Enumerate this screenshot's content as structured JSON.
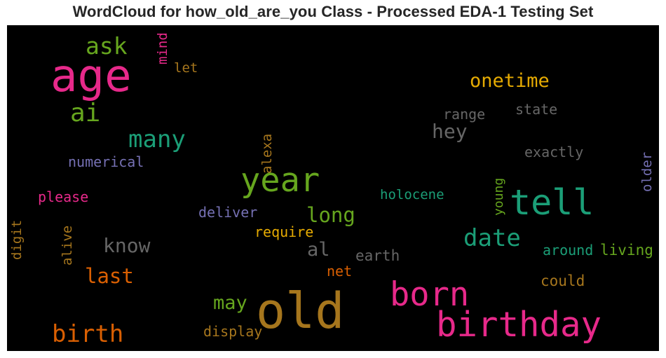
{
  "title": "WordCloud for how_old_are_you Class - Processed EDA-1 Testing Set",
  "chart_data": {
    "type": "wordcloud",
    "background": "#000000",
    "colors": {
      "pink": "#e7298a",
      "green": "#66a61e",
      "teal": "#1b9e77",
      "gold": "#a6761d",
      "grey": "#666666",
      "purple": "#7570b3",
      "orange": "#d95f02",
      "yellow": "#e6ab02"
    },
    "words": [
      {
        "text": "age",
        "color": "pink"
      },
      {
        "text": "ask",
        "color": "green"
      },
      {
        "text": "mind",
        "color": "pink",
        "vertical": true
      },
      {
        "text": "let",
        "color": "gold"
      },
      {
        "text": "ai",
        "color": "green"
      },
      {
        "text": "onetime",
        "color": "yellow"
      },
      {
        "text": "range",
        "color": "grey"
      },
      {
        "text": "state",
        "color": "grey"
      },
      {
        "text": "many",
        "color": "teal"
      },
      {
        "text": "hey",
        "color": "grey"
      },
      {
        "text": "exactly",
        "color": "grey"
      },
      {
        "text": "older",
        "color": "purple",
        "vertical": true
      },
      {
        "text": "numerical",
        "color": "purple"
      },
      {
        "text": "alexa",
        "color": "gold",
        "vertical": true
      },
      {
        "text": "year",
        "color": "green"
      },
      {
        "text": "tell",
        "color": "teal"
      },
      {
        "text": "holocene",
        "color": "teal"
      },
      {
        "text": "young",
        "color": "green",
        "vertical": true
      },
      {
        "text": "please",
        "color": "pink"
      },
      {
        "text": "deliver",
        "color": "purple"
      },
      {
        "text": "long",
        "color": "green"
      },
      {
        "text": "require",
        "color": "yellow"
      },
      {
        "text": "date",
        "color": "teal"
      },
      {
        "text": "digit",
        "color": "gold",
        "vertical": true
      },
      {
        "text": "alive",
        "color": "gold",
        "vertical": true
      },
      {
        "text": "know",
        "color": "grey"
      },
      {
        "text": "al",
        "color": "grey"
      },
      {
        "text": "earth",
        "color": "grey"
      },
      {
        "text": "around",
        "color": "teal"
      },
      {
        "text": "living",
        "color": "green"
      },
      {
        "text": "last",
        "color": "orange"
      },
      {
        "text": "net",
        "color": "orange"
      },
      {
        "text": "born",
        "color": "pink"
      },
      {
        "text": "could",
        "color": "gold"
      },
      {
        "text": "may",
        "color": "green"
      },
      {
        "text": "old",
        "color": "gold"
      },
      {
        "text": "birthday",
        "color": "pink"
      },
      {
        "text": "birth",
        "color": "orange"
      },
      {
        "text": "display",
        "color": "gold"
      }
    ]
  }
}
